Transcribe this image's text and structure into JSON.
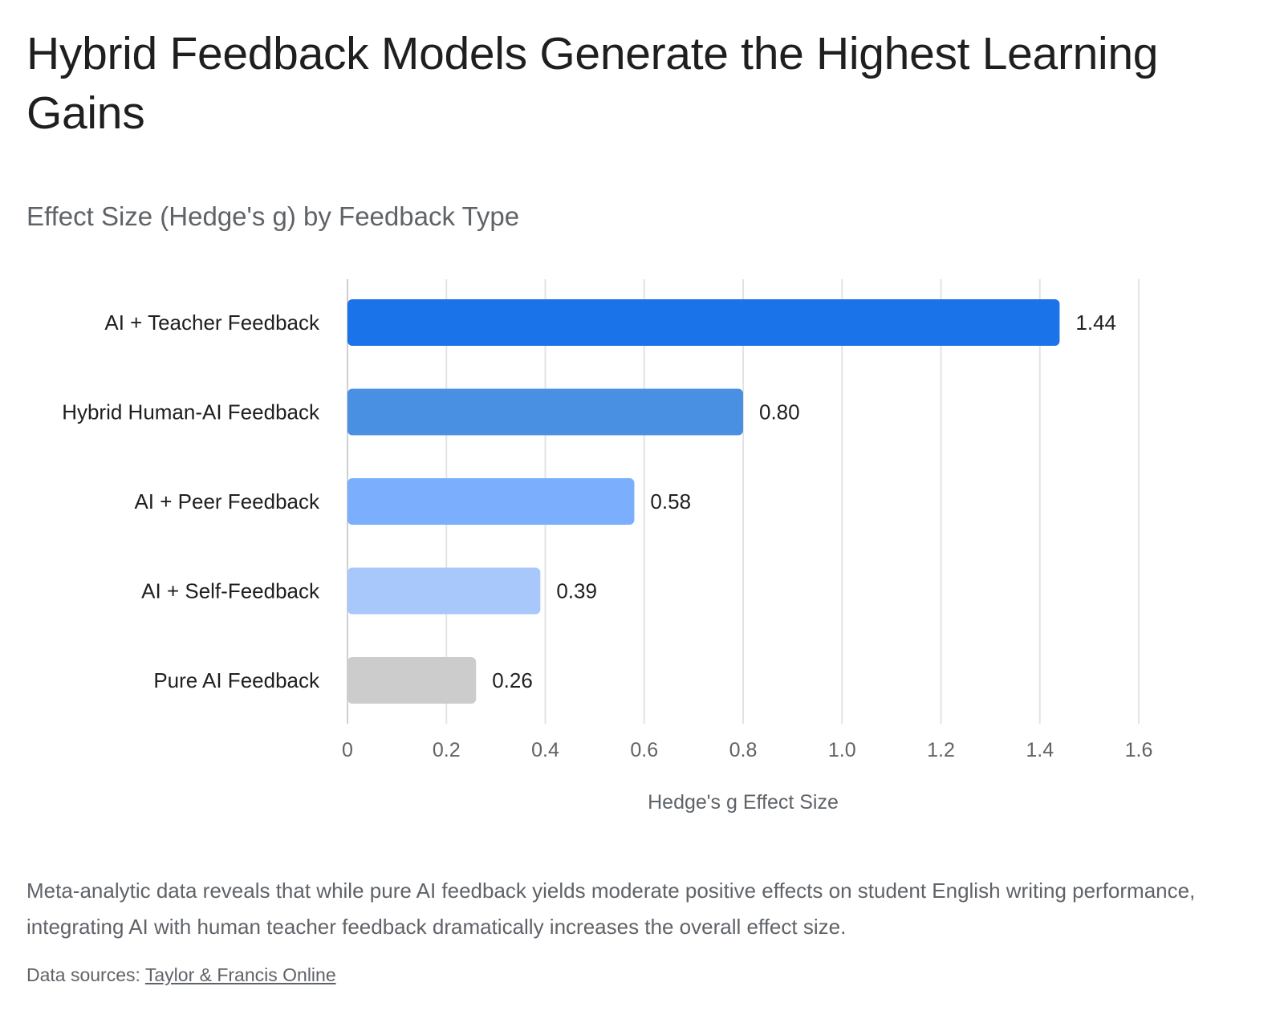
{
  "header": {
    "title": "Hybrid Feedback Models Generate the Highest Learning Gains"
  },
  "chart_data": {
    "type": "bar",
    "orientation": "horizontal",
    "subtitle": "Effect Size (Hedge's g) by Feedback Type",
    "categories": [
      "AI + Teacher Feedback",
      "Hybrid Human-AI Feedback",
      "AI + Peer Feedback",
      "AI + Self-Feedback",
      "Pure AI Feedback"
    ],
    "values": [
      1.44,
      0.8,
      0.58,
      0.39,
      0.26
    ],
    "data_labels": [
      "1.44",
      "0.80",
      "0.58",
      "0.39",
      "0.26"
    ],
    "bar_colors": [
      "#1a73e8",
      "#4a90e2",
      "#7baefc",
      "#a8c7fa",
      "#cccccc"
    ],
    "xlabel": "Hedge's g Effect Size",
    "ylabel": "",
    "xlim": [
      0,
      1.6
    ],
    "x_ticks": [
      0,
      0.2,
      0.4,
      0.6,
      0.8,
      1.0,
      1.2,
      1.4,
      1.6
    ],
    "x_tick_labels": [
      "0",
      "0.2",
      "0.4",
      "0.6",
      "0.8",
      "1.0",
      "1.2",
      "1.4",
      "1.6"
    ],
    "grid": true,
    "legend": "none"
  },
  "footer": {
    "description": "Meta-analytic data reveals that while pure AI feedback yields moderate positive effects on student English writing performance, integrating AI with human teacher feedback dramatically increases the overall effect size.",
    "sources_label": "Data sources: ",
    "sources_link": "Taylor & Francis Online"
  }
}
